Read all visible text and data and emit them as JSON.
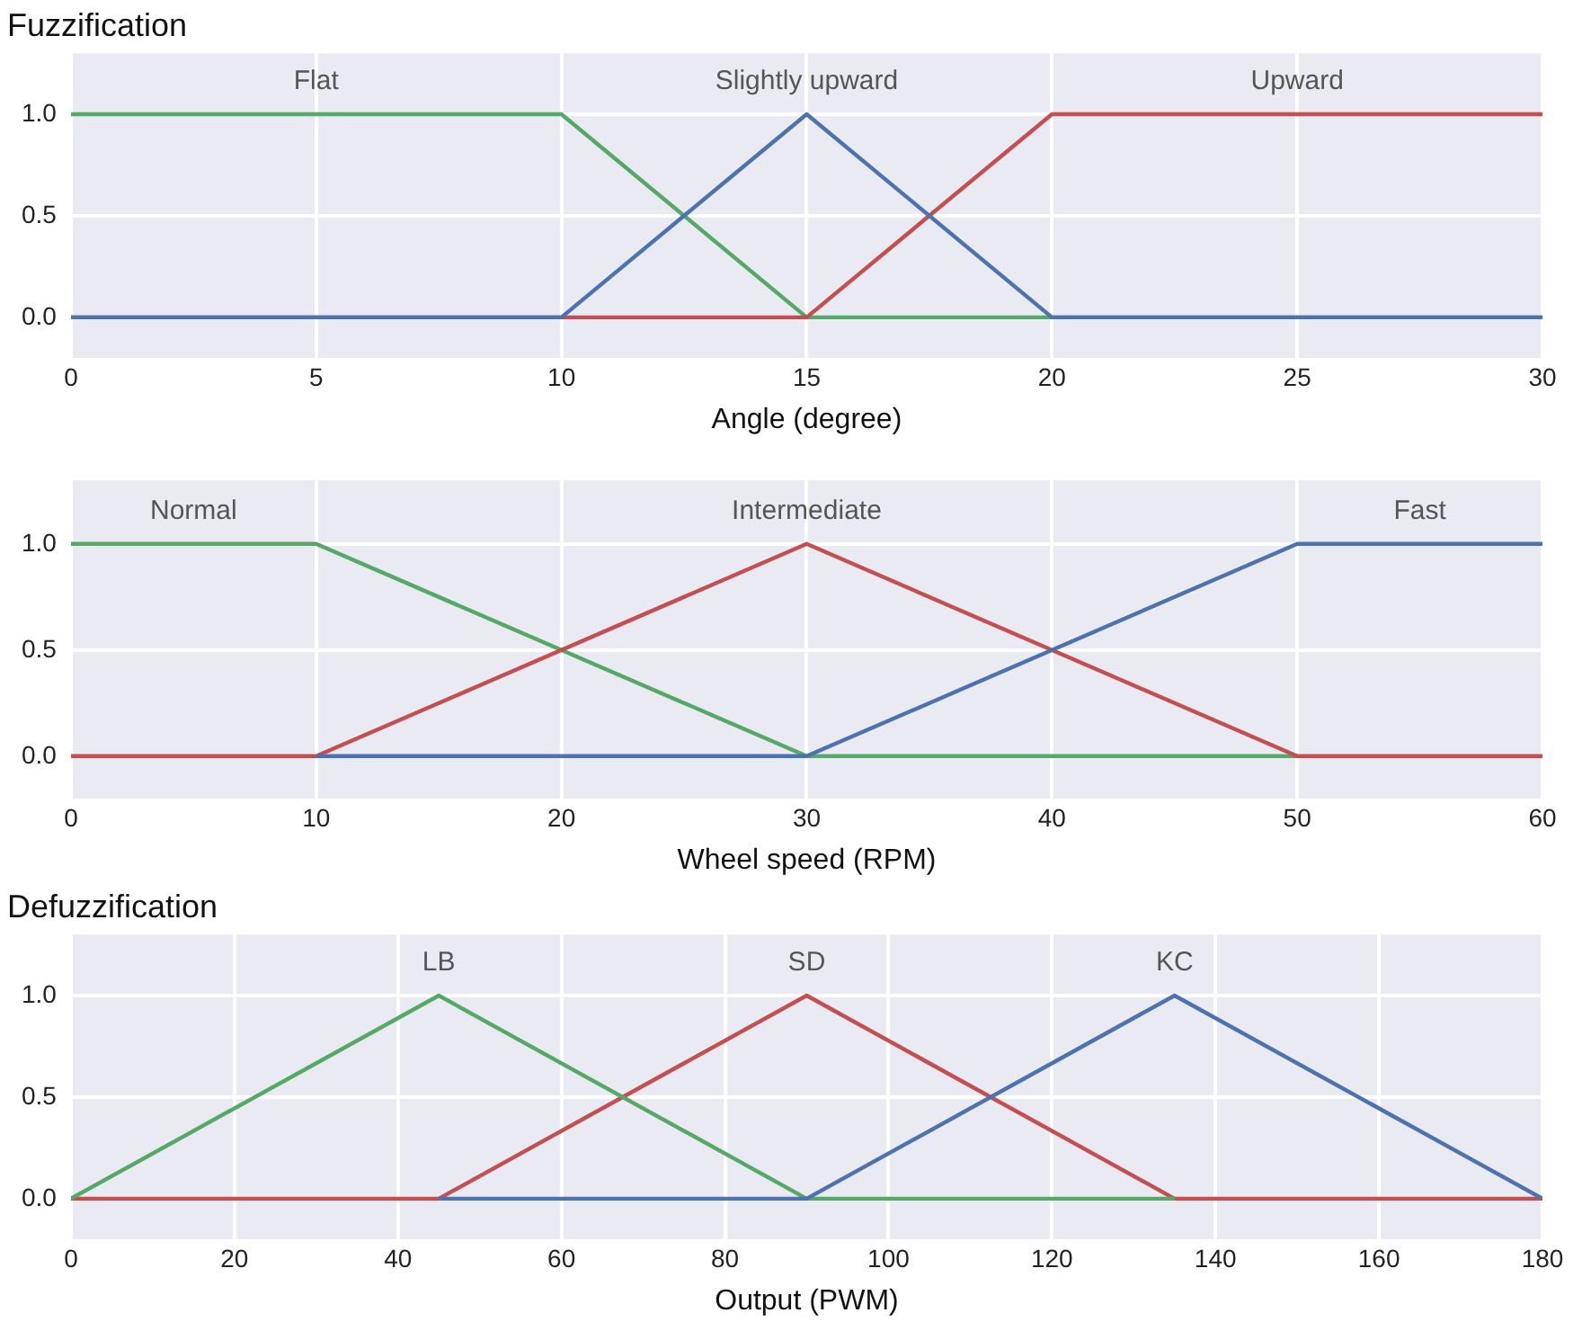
{
  "chart_data": [
    {
      "type": "line",
      "title": "Fuzzification",
      "xlabel": "Angle (degree)",
      "xlim": [
        0,
        30
      ],
      "xticks": [
        0,
        5,
        10,
        15,
        20,
        25,
        30
      ],
      "ylim": [
        -0.2,
        1.3
      ],
      "yticks": [
        {
          "value": 0,
          "label": "0.0"
        },
        {
          "value": 0.5,
          "label": "0.5"
        },
        {
          "value": 1,
          "label": "1.0"
        }
      ],
      "grid": true,
      "series": [
        {
          "name": "Slightly upward",
          "color": "#4c72b0",
          "x": [
            0,
            10,
            15,
            20,
            30
          ],
          "values": [
            0,
            0,
            1,
            0,
            0
          ]
        },
        {
          "name": "Upward",
          "color": "#c44e52",
          "x": [
            0,
            15,
            20,
            30
          ],
          "values": [
            0,
            0,
            1,
            1
          ]
        },
        {
          "name": "Flat",
          "color": "#55a868",
          "x": [
            0,
            10,
            15,
            30
          ],
          "values": [
            1,
            1,
            0,
            0
          ]
        }
      ]
    },
    {
      "type": "line",
      "xlabel": "Wheel speed (RPM)",
      "xlim": [
        0,
        60
      ],
      "xticks": [
        0,
        10,
        20,
        30,
        40,
        50,
        60
      ],
      "ylim": [
        -0.2,
        1.3
      ],
      "yticks": [
        {
          "value": 0,
          "label": "0.0"
        },
        {
          "value": 0.5,
          "label": "0.5"
        },
        {
          "value": 1,
          "label": "1.0"
        }
      ],
      "grid": true,
      "series": [
        {
          "name": "Fast",
          "color": "#4c72b0",
          "x": [
            10,
            30,
            50,
            60
          ],
          "values": [
            0,
            0,
            1,
            1
          ]
        },
        {
          "name": "Intermediate",
          "color": "#c44e52",
          "x": [
            0,
            10,
            30,
            50,
            60
          ],
          "values": [
            0,
            0,
            1,
            0,
            0
          ]
        },
        {
          "name": "Normal",
          "color": "#55a868",
          "x": [
            0,
            10,
            30,
            50
          ],
          "values": [
            1,
            1,
            0,
            0
          ]
        }
      ]
    },
    {
      "type": "line",
      "title": "Defuzzification",
      "xlabel": "Output (PWM)",
      "xlim": [
        0,
        180
      ],
      "xticks": [
        0,
        20,
        40,
        60,
        80,
        100,
        120,
        140,
        160,
        180
      ],
      "ylim": [
        -0.2,
        1.3
      ],
      "yticks": [
        {
          "value": 0,
          "label": "0.0"
        },
        {
          "value": 0.5,
          "label": "0.5"
        },
        {
          "value": 1,
          "label": "1.0"
        }
      ],
      "grid": true,
      "series": [
        {
          "name": "KC",
          "color": "#4c72b0",
          "x": [
            45,
            90,
            135,
            180
          ],
          "values": [
            0,
            0,
            1,
            0
          ]
        },
        {
          "name": "LB",
          "color": "#55a868",
          "x": [
            0,
            45,
            90,
            135
          ],
          "values": [
            0,
            1,
            0,
            0
          ]
        },
        {
          "name": "SD",
          "color": "#c44e52",
          "x": [
            0,
            45,
            90,
            135,
            180
          ],
          "values": [
            0,
            0,
            1,
            0,
            0
          ]
        }
      ]
    }
  ]
}
